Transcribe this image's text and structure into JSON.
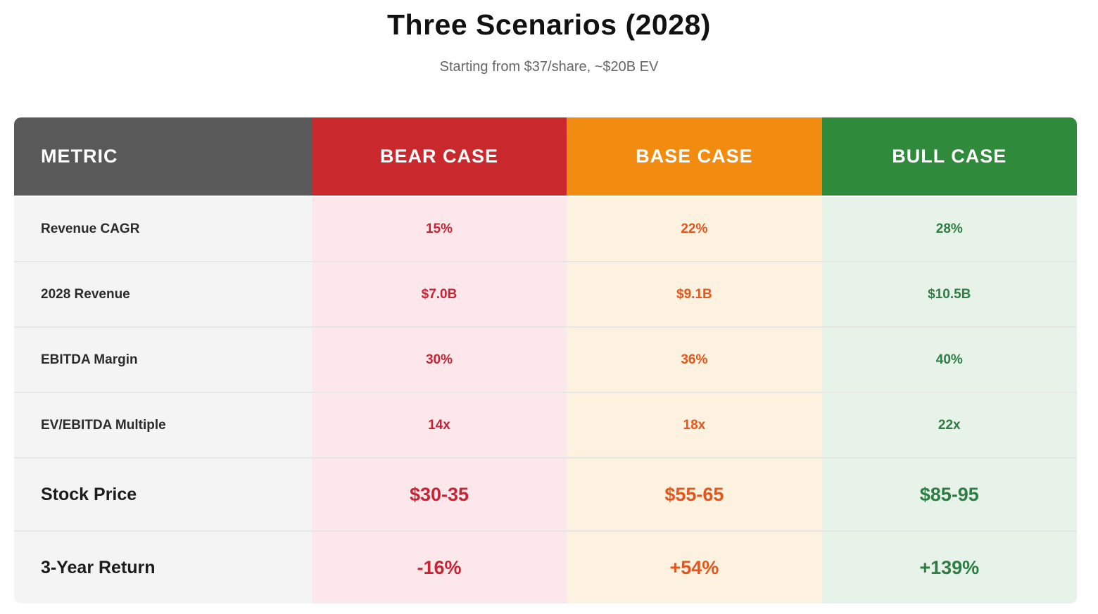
{
  "chart_data": {
    "type": "table",
    "title": "Three Scenarios (2028)",
    "subtitle": "Starting from $37/share, ~$20B EV",
    "columns": [
      {
        "key": "metric",
        "label": "METRIC",
        "header_bg": "#595959",
        "cell_bg": "#f4f4f4",
        "text_color": "#2b2b2b"
      },
      {
        "key": "bear",
        "label": "BEAR CASE",
        "header_bg": "#c9282d",
        "cell_bg": "#fce8eb",
        "text_color": "#c62434"
      },
      {
        "key": "base",
        "label": "BASE CASE",
        "header_bg": "#f28c10",
        "cell_bg": "#fdf1df",
        "text_color": "#e2571d"
      },
      {
        "key": "bull",
        "label": "BULL CASE",
        "header_bg": "#2f8a3c",
        "cell_bg": "#e7f2e9",
        "text_color": "#2e7d44"
      }
    ],
    "rows": [
      {
        "metric": "Revenue CAGR",
        "bear": "15%",
        "base": "22%",
        "bull": "28%",
        "emphasis": false
      },
      {
        "metric": "2028 Revenue",
        "bear": "$7.0B",
        "base": "$9.1B",
        "bull": "$10.5B",
        "emphasis": false
      },
      {
        "metric": "EBITDA Margin",
        "bear": "30%",
        "base": "36%",
        "bull": "40%",
        "emphasis": false
      },
      {
        "metric": "EV/EBITDA Multiple",
        "bear": "14x",
        "base": "18x",
        "bull": "22x",
        "emphasis": false
      },
      {
        "metric": "Stock Price",
        "bear": "$30-35",
        "base": "$55-65",
        "bull": "$85-95",
        "emphasis": true
      },
      {
        "metric": "3-Year Return",
        "bear": "-16%",
        "base": "+54%",
        "bull": "+139%",
        "emphasis": true
      }
    ]
  }
}
